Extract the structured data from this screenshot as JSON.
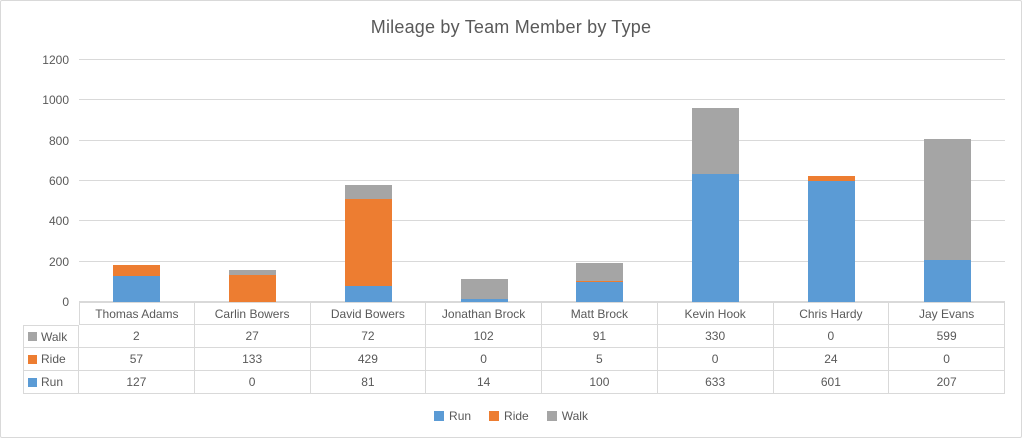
{
  "title": "Mileage by Team Member by Type",
  "chart_data": {
    "type": "bar",
    "stacked": true,
    "title": "Mileage by Team Member by Type",
    "categories": [
      "Thomas Adams",
      "Carlin Bowers",
      "David Bowers",
      "Jonathan Brock",
      "Matt Brock",
      "Kevin Hook",
      "Chris Hardy",
      "Jay Evans"
    ],
    "series": [
      {
        "name": "Run",
        "color": "#5B9BD5",
        "values": [
          127,
          0,
          81,
          14,
          100,
          633,
          601,
          207
        ]
      },
      {
        "name": "Ride",
        "color": "#ED7D31",
        "values": [
          57,
          133,
          429,
          0,
          5,
          0,
          24,
          0
        ]
      },
      {
        "name": "Walk",
        "color": "#A5A5A5",
        "values": [
          2,
          27,
          72,
          102,
          91,
          330,
          0,
          599
        ]
      }
    ],
    "y_axis": {
      "min": 0,
      "max": 1200,
      "step": 200,
      "tick_labels": [
        "1200",
        "1000",
        "800",
        "600",
        "400",
        "200",
        "0"
      ]
    },
    "legend": {
      "position": "bottom",
      "items": [
        "Run",
        "Ride",
        "Walk"
      ]
    },
    "grid": true,
    "data_table": {
      "visible": true,
      "row_order": [
        "Walk",
        "Ride",
        "Run"
      ]
    },
    "colors": {
      "grid": "#D9D9D9",
      "text": "#595959",
      "frame_border": "#D9D9D9"
    }
  }
}
